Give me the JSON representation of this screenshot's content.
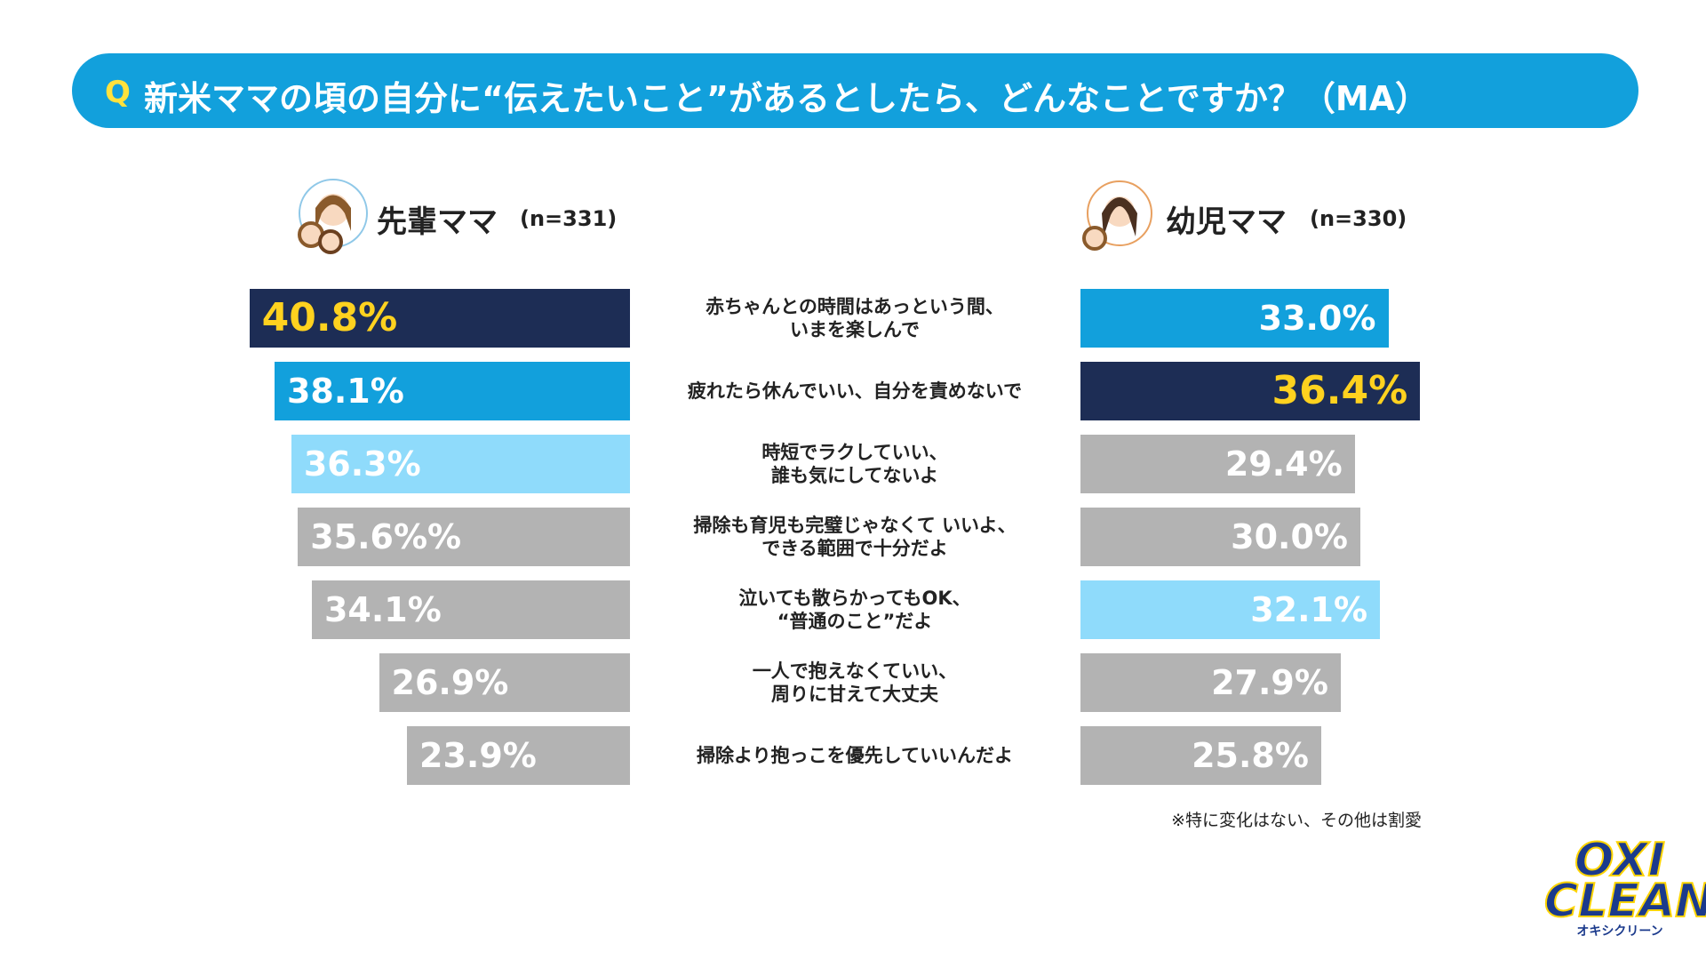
{
  "chart_data": {
    "type": "butterfly-bar",
    "question_marker": "Q",
    "title": "新米ママの頃の自分に“伝えたいこと”があるとしたら、どんなことですか？（MA）",
    "categories": [
      "赤ちゃんとの時間はあっという間、\nいまを楽しんで",
      "疲れたら休んでいい、自分を責めないで",
      "時短でラクしていい、\n誰も気にしてないよ",
      "掃除も育児も完璧じゃなくて いいよ、\nできる範囲で十分だよ",
      "泣いても散らかってもOK、\n“普通のこと”だよ",
      "一人で抱えなくていい、\n周りに甘えて大丈夫",
      "掃除より抱っこを優先していいんだよ"
    ],
    "series": [
      {
        "name": "先輩ママ",
        "sample": "(n=331)",
        "side": "left",
        "values": [
          40.8,
          38.1,
          36.3,
          35.6,
          34.1,
          26.9,
          23.9
        ],
        "value_labels": [
          "40.8%",
          "38.1%",
          "36.3%",
          "35.6%%",
          "34.1%",
          "26.9%",
          "23.9%"
        ],
        "colors": [
          "#1d2d55",
          "#12a0dc",
          "#8fdbfb",
          "#b3b3b3",
          "#b3b3b3",
          "#b3b3b3",
          "#b3b3b3"
        ]
      },
      {
        "name": "幼児ママ",
        "sample": "(n=330)",
        "side": "right",
        "values": [
          33.0,
          36.4,
          29.4,
          30.0,
          32.1,
          27.9,
          25.8
        ],
        "value_labels": [
          "33.0%",
          "36.4%",
          "29.4%",
          "30.0%",
          "32.1%",
          "27.9%",
          "25.8%"
        ],
        "colors": [
          "#12a0dc",
          "#1d2d55",
          "#b3b3b3",
          "#b3b3b3",
          "#8fdbfb",
          "#b3b3b3",
          "#b3b3b3"
        ]
      }
    ],
    "highlight_label_color": "#ffd21f",
    "label_color": "#ffffff",
    "footnote": "※特に変化はない、その他は割愛",
    "logo": "OXI CLEAN",
    "logo_sub": "オキシクリーン"
  }
}
